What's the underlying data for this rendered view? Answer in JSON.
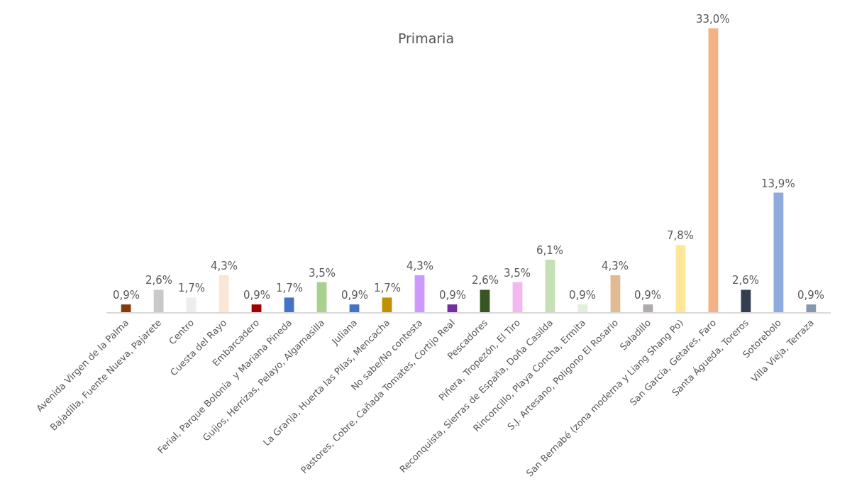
{
  "chart_data": {
    "type": "bar",
    "title": "Primaria",
    "categories": [
      "Avenida Virgen de la Palma",
      "Bajadilla, Fuente Nueva, Pajarete",
      "Centro",
      "Cuesta del Rayo",
      "Embarcadero",
      "Ferial, Parque Bolonia  y Mariana Pineda",
      "Guijos, Herrizas, Pelayo, Algamasilla",
      "Juliana",
      "La Granja, Huerta las Pilas, Mencacha",
      "No sabe/No contesta",
      "Pastores, Cobre, Cañada Tomates, Cortijo Real",
      "Pescadores",
      "Piñera, Tropezón, El Tiro",
      "Reconquista, Sierras de España, Doña Casilda",
      "Rinconcillo, Playa Concha, Ermita",
      "S.J. Artesano, Poligono El Rosario",
      "Saladillo",
      "San Bernabé (zona moderna y Liang Shang Po)",
      "San García, Getares, Faro",
      "Santa Águeda, Toreros",
      "Sotorebolo",
      "Villa Vieja, Terraza"
    ],
    "values": [
      0.9,
      2.6,
      1.7,
      4.3,
      0.9,
      1.7,
      3.5,
      0.9,
      1.7,
      4.3,
      0.9,
      2.6,
      3.5,
      6.1,
      0.9,
      4.3,
      0.9,
      7.8,
      33.0,
      2.6,
      13.9,
      0.9
    ],
    "value_labels": [
      "0,9%",
      "2,6%",
      "1,7%",
      "4,3%",
      "0,9%",
      "1,7%",
      "3,5%",
      "0,9%",
      "1,7%",
      "4,3%",
      "0,9%",
      "2,6%",
      "3,5%",
      "6,1%",
      "0,9%",
      "4,3%",
      "0,9%",
      "7,8%",
      "33,0%",
      "2,6%",
      "13,9%",
      "0,9%"
    ],
    "colors": [
      "#843c0c",
      "#c9c9c9",
      "#ededed",
      "#fbe5d6",
      "#a00000",
      "#4472c4",
      "#a9d18e",
      "#4472c4",
      "#bf9000",
      "#cc99ff",
      "#7030a0",
      "#375623",
      "#f4b8f0",
      "#c5e0b4",
      "#e2efda",
      "#dfbb93",
      "#afabab",
      "#ffe699",
      "#f4b183",
      "#333f50",
      "#8faadc",
      "#8497b0"
    ],
    "data_labels": false
  }
}
